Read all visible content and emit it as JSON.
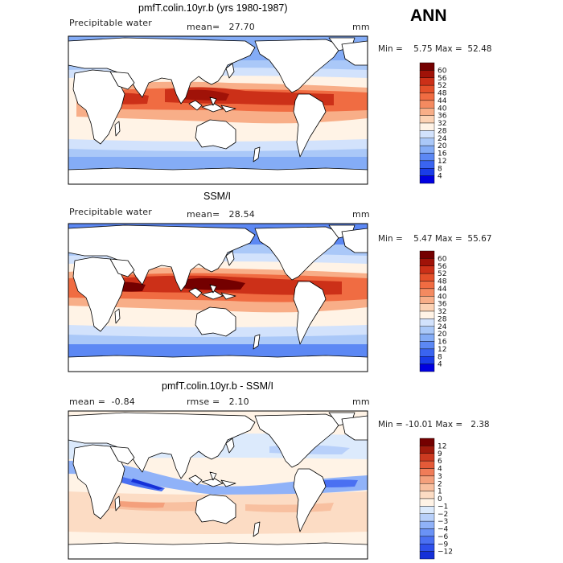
{
  "season": "ANN",
  "palette_main": [
    "#0000a0",
    "#0000e0",
    "#1a3ce8",
    "#3a64f0",
    "#5c88f4",
    "#84acf6",
    "#aac8f8",
    "#d2e2fc",
    "#fff3e6",
    "#fcd2b4",
    "#f8ae88",
    "#f48a60",
    "#f06c42",
    "#e4502a",
    "#cc3018",
    "#a01208",
    "#740000"
  ],
  "palette_diff": [
    "#0000a0",
    "#1530d8",
    "#2e50ec",
    "#4a70f2",
    "#6a92f6",
    "#90b2f8",
    "#b8d0fa",
    "#dceafc",
    "#fff3e6",
    "#fcdcc4",
    "#f8c0a0",
    "#f4a07c",
    "#f07c58",
    "#e45a38",
    "#cc3a20",
    "#a01a0c",
    "#740000"
  ],
  "panels": [
    {
      "title": "pmfT.colin.10yr.b (yrs 1980-1987)",
      "variable": "Precipitable water",
      "mean_label": "mean=",
      "mean_value": "27.70",
      "units": "mm",
      "min_label": "Min =",
      "min_value": "5.75",
      "max_label": "Max =",
      "max_value": "52.48",
      "colorbar_levels": [
        "60",
        "56",
        "52",
        "48",
        "44",
        "40",
        "36",
        "32",
        "28",
        "24",
        "20",
        "16",
        "12",
        "8",
        "4"
      ],
      "kind": "model"
    },
    {
      "title": "SSM/I",
      "variable": "Precipitable water",
      "mean_label": "mean=",
      "mean_value": "28.54",
      "units": "mm",
      "min_label": "Min =",
      "min_value": "5.47",
      "max_label": "Max =",
      "max_value": "55.67",
      "colorbar_levels": [
        "60",
        "56",
        "52",
        "48",
        "44",
        "40",
        "36",
        "32",
        "28",
        "24",
        "20",
        "16",
        "12",
        "8",
        "4"
      ],
      "kind": "obs"
    },
    {
      "title": "pmfT.colin.10yr.b - SSM/I",
      "variable": "",
      "mean_label": "mean =",
      "mean_value": "-0.84",
      "rmse_label": "rmse =",
      "rmse_value": "2.10",
      "units": "mm",
      "min_label": "Min =",
      "min_value": "-10.01",
      "max_label": "Max =",
      "max_value": "2.38",
      "colorbar_levels": [
        "12",
        "9",
        "6",
        "4",
        "3",
        "2",
        "1",
        "0",
        "−1",
        "−2",
        "−3",
        "−4",
        "−6",
        "−9",
        "−12"
      ],
      "kind": "diff"
    }
  ]
}
